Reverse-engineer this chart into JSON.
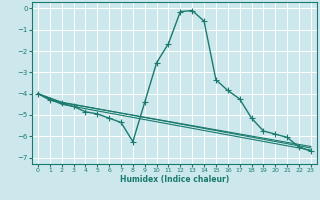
{
  "title": "",
  "xlabel": "Humidex (Indice chaleur)",
  "ylabel": "",
  "background_color": "#cde8ed",
  "grid_color": "#ffffff",
  "line_color": "#1a7a6e",
  "xlim": [
    -0.5,
    23.5
  ],
  "ylim": [
    -7.3,
    0.3
  ],
  "xticks": [
    0,
    1,
    2,
    3,
    4,
    5,
    6,
    7,
    8,
    9,
    10,
    11,
    12,
    13,
    14,
    15,
    16,
    17,
    18,
    19,
    20,
    21,
    22,
    23
  ],
  "yticks": [
    0,
    -1,
    -2,
    -3,
    -4,
    -5,
    -6,
    -7
  ],
  "series": [
    {
      "x": [
        0,
        1,
        2,
        3,
        4,
        5,
        6,
        7,
        8,
        9,
        10,
        11,
        12,
        13,
        14,
        15,
        16,
        17,
        18,
        19,
        20,
        21,
        22,
        23
      ],
      "y": [
        -4.0,
        -4.3,
        -4.45,
        -4.6,
        -4.85,
        -4.95,
        -5.15,
        -5.35,
        -6.25,
        -4.4,
        -2.55,
        -1.65,
        -0.15,
        -0.1,
        -0.6,
        -3.35,
        -3.85,
        -4.25,
        -5.15,
        -5.75,
        -5.9,
        -6.05,
        -6.5,
        -6.7
      ],
      "marker": "+",
      "linewidth": 1.0,
      "markersize": 4
    },
    {
      "x": [
        0,
        2,
        23
      ],
      "y": [
        -4.0,
        -4.4,
        -6.55
      ],
      "marker": null,
      "linewidth": 0.8,
      "markersize": 0
    },
    {
      "x": [
        0,
        2,
        23
      ],
      "y": [
        -4.0,
        -4.5,
        -6.65
      ],
      "marker": null,
      "linewidth": 0.8,
      "markersize": 0
    },
    {
      "x": [
        0,
        2,
        23
      ],
      "y": [
        -4.0,
        -4.42,
        -6.48
      ],
      "marker": null,
      "linewidth": 0.8,
      "markersize": 0
    }
  ]
}
